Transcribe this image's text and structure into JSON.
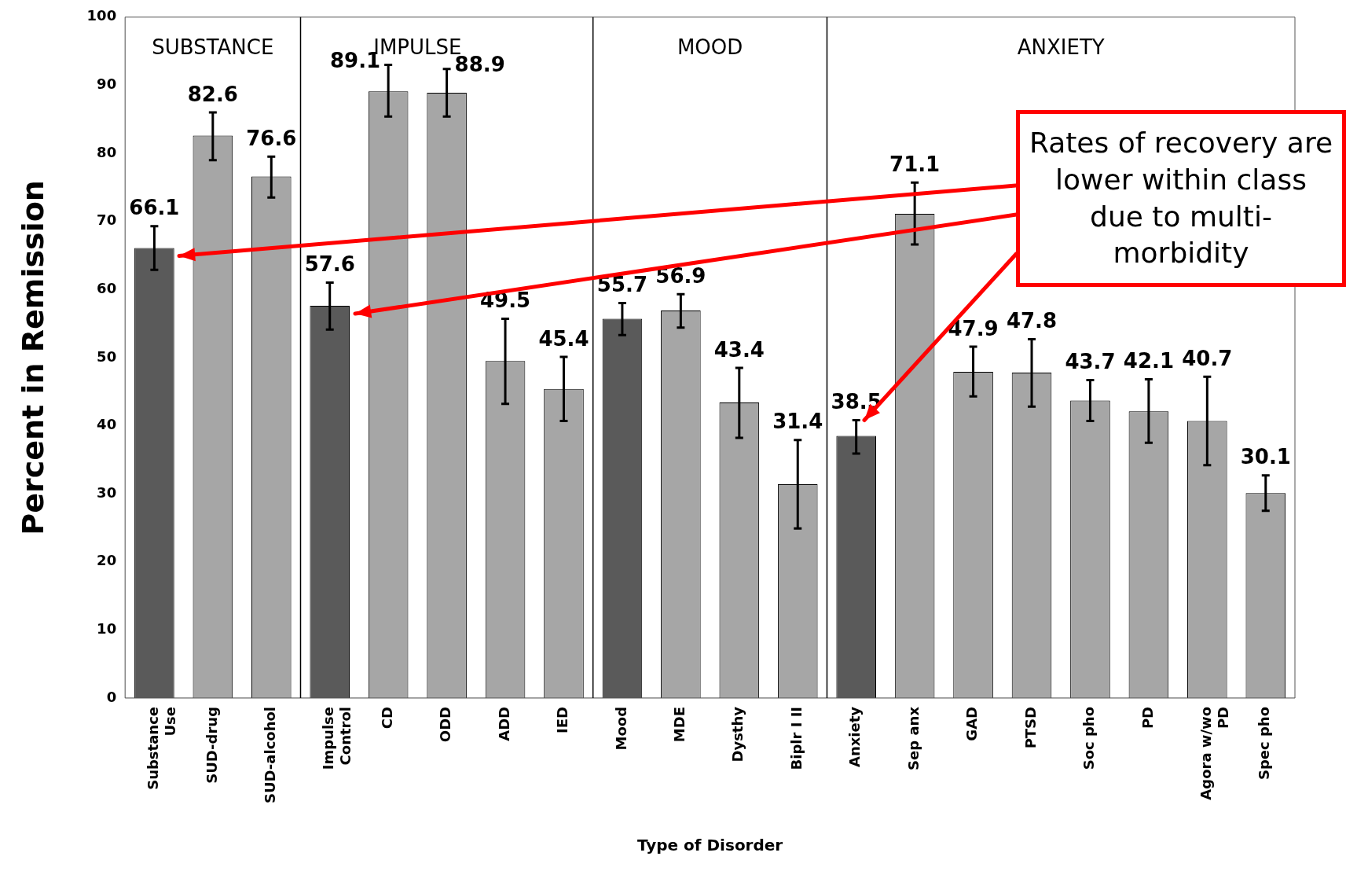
{
  "chart_data": {
    "type": "bar",
    "xlabel": "Type of Disorder",
    "ylabel": "Percent in Remission",
    "categories": [
      "Substance Use",
      "SUD-drug",
      "SUD-alcohol",
      "Impulse Control",
      "CD",
      "ODD",
      "ADD",
      "IED",
      "Mood",
      "MDE",
      "Dysthy",
      "Biplr I II",
      "Anxiety",
      "Sep anx",
      "GAD",
      "PTSD",
      "Soc pho",
      "PD",
      "Agora w/wo PD",
      "Spec pho"
    ],
    "values": [
      66.1,
      82.6,
      76.6,
      57.6,
      89.1,
      88.9,
      49.5,
      45.4,
      55.7,
      56.9,
      43.4,
      31.4,
      38.5,
      71.1,
      47.9,
      47.8,
      43.7,
      42.1,
      40.7,
      30.1
    ],
    "colors": [
      "#5a5a5a",
      "#a6a6a6",
      "#a6a6a6",
      "#5a5a5a",
      "#a6a6a6",
      "#a6a6a6",
      "#a6a6a6",
      "#a6a6a6",
      "#5a5a5a",
      "#a6a6a6",
      "#a6a6a6",
      "#a6a6a6",
      "#5a5a5a",
      "#a6a6a6",
      "#a6a6a6",
      "#a6a6a6",
      "#a6a6a6",
      "#a6a6a6",
      "#a6a6a6",
      "#a6a6a6"
    ],
    "errors": [
      [
        62.9,
        69.3
      ],
      [
        79,
        86
      ],
      [
        73.5,
        79.5
      ],
      [
        54.1,
        61
      ],
      [
        85.4,
        93
      ],
      [
        85.4,
        92.4
      ],
      [
        43.2,
        55.7
      ],
      [
        40.7,
        50.1
      ],
      [
        53.3,
        58
      ],
      [
        54.4,
        59.3
      ],
      [
        38.2,
        48.5
      ],
      [
        24.9,
        37.9
      ],
      [
        35.9,
        40.8
      ],
      [
        66.6,
        75.7
      ],
      [
        44.3,
        51.6
      ],
      [
        42.8,
        52.7
      ],
      [
        40.7,
        46.7
      ],
      [
        37.5,
        46.8
      ],
      [
        34.2,
        47.2
      ],
      [
        27.5,
        32.7
      ]
    ],
    "data_labels": true,
    "ylim": [
      0,
      100
    ],
    "yticks": [
      0,
      10,
      20,
      30,
      40,
      50,
      60,
      70,
      80,
      90,
      100
    ],
    "grid": false,
    "legend": false,
    "annotations": [
      "SUBSTANCE",
      "IMPULSE",
      "MOOD",
      "ANXIETY",
      "Rates of recovery are lower within class due to multi-morbidity"
    ]
  }
}
